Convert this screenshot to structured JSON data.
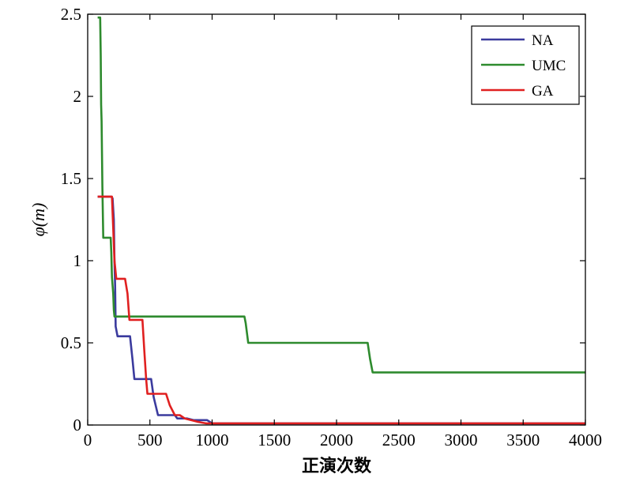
{
  "chart_data": {
    "type": "line",
    "title": "",
    "xlabel": "正演次数",
    "ylabel_italic": "φ(m)",
    "xlim": [
      0,
      4000
    ],
    "ylim": [
      0,
      2.5
    ],
    "xticks": [
      "0",
      "500",
      "1000",
      "1500",
      "2000",
      "2500",
      "3000",
      "3500",
      "4000"
    ],
    "yticks": [
      "0",
      "0.5",
      "1",
      "1.5",
      "2",
      "2.5"
    ],
    "grid": false,
    "legend_position": "top-right",
    "series": [
      {
        "name": "NA",
        "color": "#3b3b9e",
        "points": [
          [
            80,
            1.39
          ],
          [
            190,
            1.39
          ],
          [
            200,
            1.38
          ],
          [
            210,
            1.25
          ],
          [
            215,
            1.0
          ],
          [
            220,
            0.85
          ],
          [
            225,
            0.6
          ],
          [
            240,
            0.54
          ],
          [
            340,
            0.54
          ],
          [
            360,
            0.4
          ],
          [
            375,
            0.28
          ],
          [
            510,
            0.28
          ],
          [
            530,
            0.17
          ],
          [
            565,
            0.06
          ],
          [
            700,
            0.06
          ],
          [
            720,
            0.04
          ],
          [
            800,
            0.04
          ],
          [
            850,
            0.03
          ],
          [
            960,
            0.03
          ],
          [
            1000,
            0.01
          ],
          [
            4000,
            0.01
          ]
        ]
      },
      {
        "name": "UMC",
        "color": "#2e8b2e",
        "points": [
          [
            80,
            2.48
          ],
          [
            100,
            2.48
          ],
          [
            105,
            2.25
          ],
          [
            108,
            1.95
          ],
          [
            112,
            1.85
          ],
          [
            115,
            1.65
          ],
          [
            118,
            1.45
          ],
          [
            125,
            1.14
          ],
          [
            185,
            1.14
          ],
          [
            190,
            1.05
          ],
          [
            195,
            0.9
          ],
          [
            200,
            0.85
          ],
          [
            205,
            0.8
          ],
          [
            210,
            0.7
          ],
          [
            215,
            0.66
          ],
          [
            1260,
            0.66
          ],
          [
            1270,
            0.62
          ],
          [
            1290,
            0.5
          ],
          [
            2250,
            0.5
          ],
          [
            2270,
            0.4
          ],
          [
            2290,
            0.32
          ],
          [
            4000,
            0.32
          ]
        ]
      },
      {
        "name": "GA",
        "color": "#e02020",
        "points": [
          [
            80,
            1.39
          ],
          [
            195,
            1.39
          ],
          [
            205,
            1.2
          ],
          [
            215,
            1.0
          ],
          [
            230,
            0.89
          ],
          [
            300,
            0.89
          ],
          [
            320,
            0.8
          ],
          [
            335,
            0.64
          ],
          [
            440,
            0.64
          ],
          [
            455,
            0.45
          ],
          [
            470,
            0.28
          ],
          [
            480,
            0.19
          ],
          [
            630,
            0.19
          ],
          [
            660,
            0.12
          ],
          [
            700,
            0.06
          ],
          [
            740,
            0.06
          ],
          [
            780,
            0.04
          ],
          [
            830,
            0.03
          ],
          [
            880,
            0.02
          ],
          [
            950,
            0.01
          ],
          [
            4000,
            0.01
          ]
        ]
      }
    ]
  }
}
